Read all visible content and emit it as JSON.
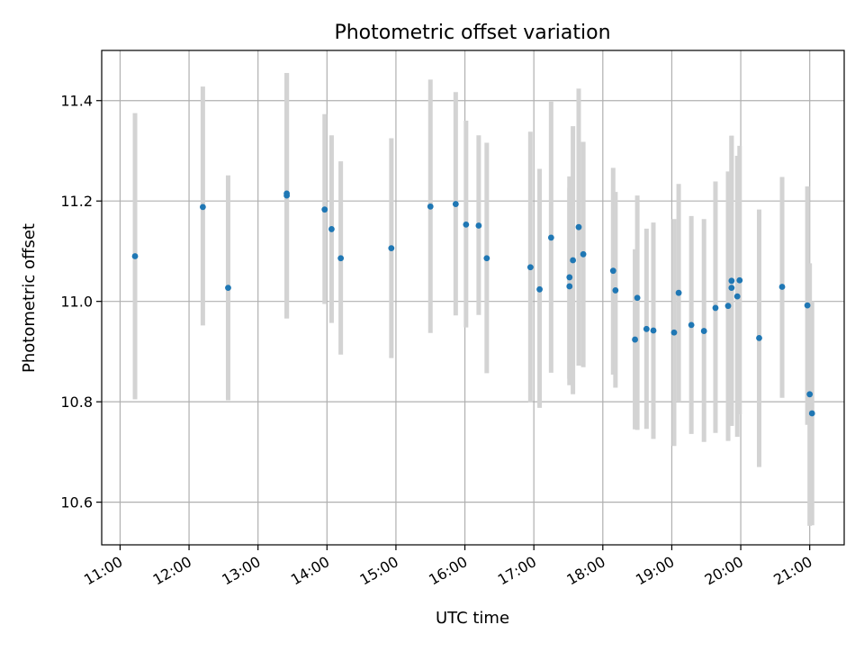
{
  "chart_data": {
    "type": "scatter",
    "title": "Photometric offset variation",
    "xlabel": "UTC time",
    "ylabel": "Photometric offset",
    "x_unit": "UTC time",
    "xlim": [
      "10:44",
      "21:30"
    ],
    "ylim": [
      10.515,
      11.5
    ],
    "x_ticks": [
      "11:00",
      "12:00",
      "13:00",
      "14:00",
      "15:00",
      "16:00",
      "17:00",
      "18:00",
      "19:00",
      "20:00",
      "21:00"
    ],
    "y_ticks": [
      "10.6",
      "10.8",
      "11.0",
      "11.2",
      "11.4"
    ],
    "grid": true,
    "colors": {
      "point": "#1f77b4",
      "errorbar": "#d3d3d3",
      "grid": "#b0b0b0"
    },
    "points": [
      {
        "time": "11:13",
        "y": 11.09,
        "y_low": 10.805,
        "y_high": 11.375
      },
      {
        "time": "12:12",
        "y": 11.188,
        "y_low": 10.952,
        "y_high": 11.428
      },
      {
        "time": "12:34",
        "y": 11.027,
        "y_low": 10.803,
        "y_high": 11.251
      },
      {
        "time": "13:25",
        "y": 11.211,
        "y_low": 10.966,
        "y_high": 11.455
      },
      {
        "time": "13:25",
        "y": 11.215,
        "y_low": 10.966,
        "y_high": 11.455
      },
      {
        "time": "13:58",
        "y": 11.183,
        "y_low": 10.995,
        "y_high": 11.373
      },
      {
        "time": "14:04",
        "y": 11.144,
        "y_low": 10.957,
        "y_high": 11.331
      },
      {
        "time": "14:12",
        "y": 11.086,
        "y_low": 10.894,
        "y_high": 11.279
      },
      {
        "time": "14:56",
        "y": 11.106,
        "y_low": 10.887,
        "y_high": 11.325
      },
      {
        "time": "15:30",
        "y": 11.189,
        "y_low": 10.937,
        "y_high": 11.442
      },
      {
        "time": "15:52",
        "y": 11.194,
        "y_low": 10.972,
        "y_high": 11.417
      },
      {
        "time": "16:01",
        "y": 11.153,
        "y_low": 10.948,
        "y_high": 11.36
      },
      {
        "time": "16:12",
        "y": 11.151,
        "y_low": 10.973,
        "y_high": 11.331
      },
      {
        "time": "16:19",
        "y": 11.086,
        "y_low": 10.857,
        "y_high": 11.316
      },
      {
        "time": "16:57",
        "y": 11.068,
        "y_low": 10.799,
        "y_high": 11.338
      },
      {
        "time": "17:05",
        "y": 11.024,
        "y_low": 10.788,
        "y_high": 11.264
      },
      {
        "time": "17:15",
        "y": 11.127,
        "y_low": 10.858,
        "y_high": 11.398
      },
      {
        "time": "17:31",
        "y": 11.048,
        "y_low": 10.846,
        "y_high": 11.249
      },
      {
        "time": "17:31",
        "y": 11.03,
        "y_low": 10.833,
        "y_high": 11.226
      },
      {
        "time": "17:34",
        "y": 11.082,
        "y_low": 10.815,
        "y_high": 11.349
      },
      {
        "time": "17:39",
        "y": 11.148,
        "y_low": 10.872,
        "y_high": 11.424
      },
      {
        "time": "17:43",
        "y": 11.094,
        "y_low": 10.869,
        "y_high": 11.318
      },
      {
        "time": "18:09",
        "y": 11.061,
        "y_low": 10.854,
        "y_high": 11.266
      },
      {
        "time": "18:11",
        "y": 11.022,
        "y_low": 10.828,
        "y_high": 11.218
      },
      {
        "time": "18:28",
        "y": 10.924,
        "y_low": 10.745,
        "y_high": 11.104
      },
      {
        "time": "18:30",
        "y": 11.007,
        "y_low": 10.744,
        "y_high": 11.211
      },
      {
        "time": "18:38",
        "y": 10.945,
        "y_low": 10.746,
        "y_high": 11.145
      },
      {
        "time": "18:44",
        "y": 10.942,
        "y_low": 10.726,
        "y_high": 11.157
      },
      {
        "time": "19:02",
        "y": 10.938,
        "y_low": 10.712,
        "y_high": 11.164
      },
      {
        "time": "19:06",
        "y": 11.017,
        "y_low": 10.8,
        "y_high": 11.234
      },
      {
        "time": "19:17",
        "y": 10.953,
        "y_low": 10.736,
        "y_high": 11.17
      },
      {
        "time": "19:28",
        "y": 10.941,
        "y_low": 10.72,
        "y_high": 11.164
      },
      {
        "time": "19:38",
        "y": 10.987,
        "y_low": 10.738,
        "y_high": 11.239
      },
      {
        "time": "19:49",
        "y": 10.991,
        "y_low": 10.722,
        "y_high": 11.259
      },
      {
        "time": "19:52",
        "y": 11.027,
        "y_low": 10.752,
        "y_high": 11.33
      },
      {
        "time": "19:52",
        "y": 11.041,
        "y_low": 10.752,
        "y_high": 11.33
      },
      {
        "time": "19:57",
        "y": 11.01,
        "y_low": 10.73,
        "y_high": 11.29
      },
      {
        "time": "19:59",
        "y": 11.042,
        "y_low": 10.775,
        "y_high": 11.31
      },
      {
        "time": "20:16",
        "y": 10.927,
        "y_low": 10.67,
        "y_high": 11.183
      },
      {
        "time": "20:36",
        "y": 11.029,
        "y_low": 10.808,
        "y_high": 11.248
      },
      {
        "time": "20:58",
        "y": 10.992,
        "y_low": 10.754,
        "y_high": 11.229
      },
      {
        "time": "21:00",
        "y": 10.815,
        "y_low": 10.553,
        "y_high": 11.076
      },
      {
        "time": "21:02",
        "y": 10.777,
        "y_low": 10.554,
        "y_high": 11.0
      }
    ]
  }
}
